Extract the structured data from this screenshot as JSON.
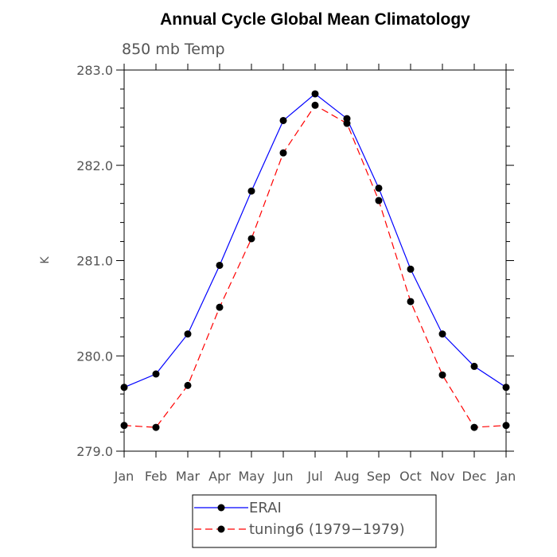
{
  "chart_data": {
    "type": "line",
    "title": "Annual Cycle Global Mean Climatology",
    "subtitle": "850 mb Temp",
    "xlabel": "",
    "ylabel": "K",
    "categories": [
      "Jan",
      "Feb",
      "Mar",
      "Apr",
      "May",
      "Jun",
      "Jul",
      "Aug",
      "Sep",
      "Oct",
      "Nov",
      "Dec",
      "Jan"
    ],
    "ylim": [
      279.0,
      283.0
    ],
    "yticks": [
      "279.0",
      "280.0",
      "281.0",
      "282.0",
      "283.0"
    ],
    "grid": false,
    "legend_position": "bottom",
    "series": [
      {
        "name": "ERAI",
        "color": "#0000ff",
        "dash": "solid",
        "marker": "circle",
        "values": [
          279.67,
          279.81,
          280.23,
          280.95,
          281.73,
          282.47,
          282.75,
          282.49,
          281.76,
          280.91,
          280.23,
          279.89,
          279.67
        ]
      },
      {
        "name": "tuning6 (1979−1979)",
        "color": "#ff0000",
        "dash": "dashed",
        "marker": "circle",
        "values": [
          279.27,
          279.25,
          279.69,
          280.51,
          281.23,
          282.13,
          282.63,
          282.44,
          281.63,
          280.57,
          279.8,
          279.25,
          279.27
        ]
      }
    ]
  }
}
